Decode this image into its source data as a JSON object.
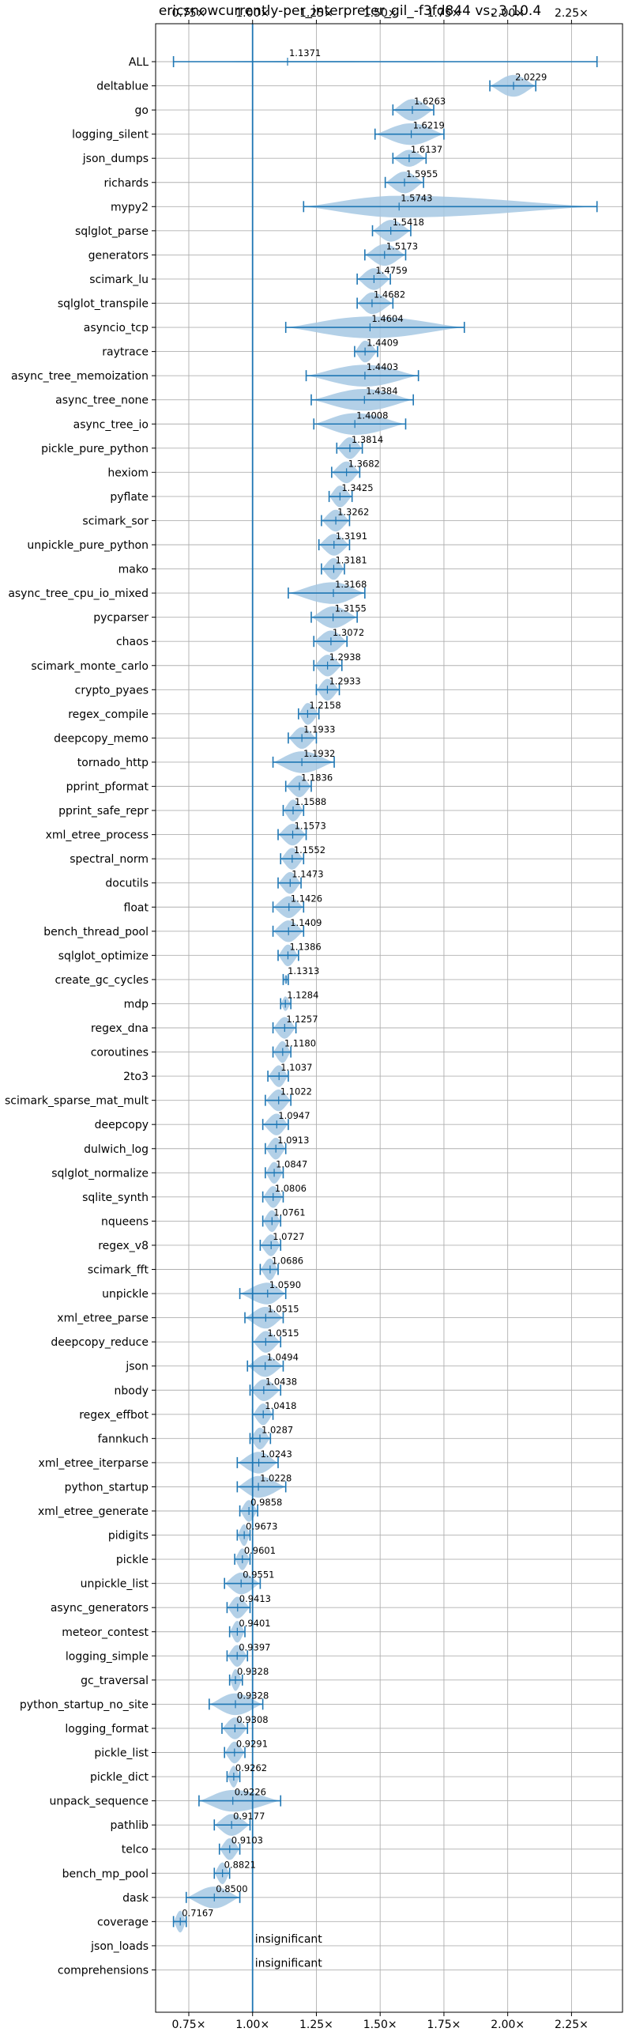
{
  "chart_data": {
    "type": "violin",
    "title": "ericsnowcurrently-per_interpreter_gil_-f3fd844 vs. 3.10.4",
    "xlabel": "",
    "ylabel": "",
    "xlim": [
      0.62,
      2.45
    ],
    "x_ticks": [
      0.75,
      1.0,
      1.25,
      1.5,
      1.75,
      2.0,
      2.25
    ],
    "x_tick_labels": [
      "0.75×",
      "1.00×",
      "1.25×",
      "1.50×",
      "1.75×",
      "2.00×",
      "2.25×"
    ],
    "x_ticks_top": true,
    "grid": true,
    "reference_line": 1.0,
    "colors": {
      "accent": "#1f77b4",
      "violin": "#a6c8e3",
      "grid": "#b0b0b0"
    },
    "insignificant_text": "insignificant",
    "categories": [
      "ALL",
      "deltablue",
      "go",
      "logging_silent",
      "json_dumps",
      "richards",
      "mypy2",
      "sqlglot_parse",
      "generators",
      "scimark_lu",
      "sqlglot_transpile",
      "asyncio_tcp",
      "raytrace",
      "async_tree_memoization",
      "async_tree_none",
      "async_tree_io",
      "pickle_pure_python",
      "hexiom",
      "pyflate",
      "scimark_sor",
      "unpickle_pure_python",
      "mako",
      "async_tree_cpu_io_mixed",
      "pycparser",
      "chaos",
      "scimark_monte_carlo",
      "crypto_pyaes",
      "regex_compile",
      "deepcopy_memo",
      "tornado_http",
      "pprint_pformat",
      "pprint_safe_repr",
      "xml_etree_process",
      "spectral_norm",
      "docutils",
      "float",
      "bench_thread_pool",
      "sqlglot_optimize",
      "create_gc_cycles",
      "mdp",
      "regex_dna",
      "coroutines",
      "2to3",
      "scimark_sparse_mat_mult",
      "deepcopy",
      "dulwich_log",
      "sqlglot_normalize",
      "sqlite_synth",
      "nqueens",
      "regex_v8",
      "scimark_fft",
      "unpickle",
      "xml_etree_parse",
      "deepcopy_reduce",
      "json",
      "nbody",
      "regex_effbot",
      "fannkuch",
      "xml_etree_iterparse",
      "python_startup",
      "xml_etree_generate",
      "pidigits",
      "pickle",
      "unpickle_list",
      "async_generators",
      "meteor_contest",
      "logging_simple",
      "gc_traversal",
      "python_startup_no_site",
      "logging_format",
      "pickle_list",
      "pickle_dict",
      "unpack_sequence",
      "pathlib",
      "telco",
      "bench_mp_pool",
      "dask",
      "coverage",
      "json_loads",
      "comprehensions"
    ],
    "series": [
      {
        "values": [
          {
            "label": "1.1371",
            "mean": 1.1371,
            "min": 0.69,
            "max": 2.35,
            "width": 0.03
          },
          {
            "label": "2.0229",
            "mean": 2.0229,
            "min": 1.93,
            "max": 2.11,
            "width": 0.45
          },
          {
            "label": "1.6263",
            "mean": 1.6263,
            "min": 1.55,
            "max": 1.71,
            "width": 0.45
          },
          {
            "label": "1.6219",
            "mean": 1.6219,
            "min": 1.48,
            "max": 1.75,
            "width": 0.45
          },
          {
            "label": "1.6137",
            "mean": 1.6137,
            "min": 1.55,
            "max": 1.68,
            "width": 0.35
          },
          {
            "label": "1.5955",
            "mean": 1.5955,
            "min": 1.52,
            "max": 1.67,
            "width": 0.45
          },
          {
            "label": "1.5743",
            "mean": 1.5743,
            "min": 1.2,
            "max": 2.35,
            "width": 0.45
          },
          {
            "label": "1.5418",
            "mean": 1.5418,
            "min": 1.47,
            "max": 1.62,
            "width": 0.45
          },
          {
            "label": "1.5173",
            "mean": 1.5173,
            "min": 1.44,
            "max": 1.6,
            "width": 0.45
          },
          {
            "label": "1.4759",
            "mean": 1.4759,
            "min": 1.41,
            "max": 1.54,
            "width": 0.45
          },
          {
            "label": "1.4682",
            "mean": 1.4682,
            "min": 1.41,
            "max": 1.55,
            "width": 0.45
          },
          {
            "label": "1.4604",
            "mean": 1.4604,
            "min": 1.13,
            "max": 1.83,
            "width": 0.45
          },
          {
            "label": "1.4409",
            "mean": 1.4409,
            "min": 1.4,
            "max": 1.49,
            "width": 0.45
          },
          {
            "label": "1.4403",
            "mean": 1.4403,
            "min": 1.21,
            "max": 1.65,
            "width": 0.45
          },
          {
            "label": "1.4384",
            "mean": 1.4384,
            "min": 1.23,
            "max": 1.63,
            "width": 0.45
          },
          {
            "label": "1.4008",
            "mean": 1.4008,
            "min": 1.24,
            "max": 1.6,
            "width": 0.45
          },
          {
            "label": "1.3814",
            "mean": 1.3814,
            "min": 1.33,
            "max": 1.43,
            "width": 0.45
          },
          {
            "label": "1.3682",
            "mean": 1.3682,
            "min": 1.31,
            "max": 1.42,
            "width": 0.45
          },
          {
            "label": "1.3425",
            "mean": 1.3425,
            "min": 1.3,
            "max": 1.39,
            "width": 0.45
          },
          {
            "label": "1.3262",
            "mean": 1.3262,
            "min": 1.27,
            "max": 1.38,
            "width": 0.45
          },
          {
            "label": "1.3191",
            "mean": 1.3191,
            "min": 1.26,
            "max": 1.38,
            "width": 0.45
          },
          {
            "label": "1.3181",
            "mean": 1.3181,
            "min": 1.27,
            "max": 1.36,
            "width": 0.45
          },
          {
            "label": "1.3168",
            "mean": 1.3168,
            "min": 1.14,
            "max": 1.44,
            "width": 0.45
          },
          {
            "label": "1.3155",
            "mean": 1.3155,
            "min": 1.23,
            "max": 1.41,
            "width": 0.45
          },
          {
            "label": "1.3072",
            "mean": 1.3072,
            "min": 1.24,
            "max": 1.37,
            "width": 0.45
          },
          {
            "label": "1.2938",
            "mean": 1.2938,
            "min": 1.24,
            "max": 1.35,
            "width": 0.45
          },
          {
            "label": "1.2933",
            "mean": 1.2933,
            "min": 1.25,
            "max": 1.34,
            "width": 0.45
          },
          {
            "label": "1.2158",
            "mean": 1.2158,
            "min": 1.18,
            "max": 1.26,
            "width": 0.45
          },
          {
            "label": "1.1933",
            "mean": 1.1933,
            "min": 1.14,
            "max": 1.25,
            "width": 0.45
          },
          {
            "label": "1.1932",
            "mean": 1.1932,
            "min": 1.08,
            "max": 1.32,
            "width": 0.45
          },
          {
            "label": "1.1836",
            "mean": 1.1836,
            "min": 1.13,
            "max": 1.23,
            "width": 0.45
          },
          {
            "label": "1.1588",
            "mean": 1.1588,
            "min": 1.12,
            "max": 1.2,
            "width": 0.45
          },
          {
            "label": "1.1573",
            "mean": 1.1573,
            "min": 1.1,
            "max": 1.21,
            "width": 0.45
          },
          {
            "label": "1.1552",
            "mean": 1.1552,
            "min": 1.11,
            "max": 1.2,
            "width": 0.45
          },
          {
            "label": "1.1473",
            "mean": 1.1473,
            "min": 1.1,
            "max": 1.19,
            "width": 0.45
          },
          {
            "label": "1.1426",
            "mean": 1.1426,
            "min": 1.08,
            "max": 1.2,
            "width": 0.45
          },
          {
            "label": "1.1409",
            "mean": 1.1409,
            "min": 1.08,
            "max": 1.2,
            "width": 0.45
          },
          {
            "label": "1.1386",
            "mean": 1.1386,
            "min": 1.1,
            "max": 1.18,
            "width": 0.45
          },
          {
            "label": "1.1313",
            "mean": 1.1313,
            "min": 1.12,
            "max": 1.14,
            "width": 0.2
          },
          {
            "label": "1.1284",
            "mean": 1.1284,
            "min": 1.11,
            "max": 1.15,
            "width": 0.3
          },
          {
            "label": "1.1257",
            "mean": 1.1257,
            "min": 1.08,
            "max": 1.17,
            "width": 0.45
          },
          {
            "label": "1.1180",
            "mean": 1.118,
            "min": 1.08,
            "max": 1.15,
            "width": 0.45
          },
          {
            "label": "1.1037",
            "mean": 1.1037,
            "min": 1.06,
            "max": 1.14,
            "width": 0.45
          },
          {
            "label": "1.1022",
            "mean": 1.1022,
            "min": 1.05,
            "max": 1.15,
            "width": 0.45
          },
          {
            "label": "1.0947",
            "mean": 1.0947,
            "min": 1.04,
            "max": 1.14,
            "width": 0.45
          },
          {
            "label": "1.0913",
            "mean": 1.0913,
            "min": 1.05,
            "max": 1.13,
            "width": 0.45
          },
          {
            "label": "1.0847",
            "mean": 1.0847,
            "min": 1.05,
            "max": 1.12,
            "width": 0.45
          },
          {
            "label": "1.0806",
            "mean": 1.0806,
            "min": 1.04,
            "max": 1.12,
            "width": 0.45
          },
          {
            "label": "1.0761",
            "mean": 1.0761,
            "min": 1.04,
            "max": 1.11,
            "width": 0.45
          },
          {
            "label": "1.0727",
            "mean": 1.0727,
            "min": 1.03,
            "max": 1.11,
            "width": 0.45
          },
          {
            "label": "1.0686",
            "mean": 1.0686,
            "min": 1.03,
            "max": 1.1,
            "width": 0.45
          },
          {
            "label": "1.0590",
            "mean": 1.059,
            "min": 0.95,
            "max": 1.13,
            "width": 0.45
          },
          {
            "label": "1.0515",
            "mean": 1.0515,
            "min": 0.97,
            "max": 1.12,
            "width": 0.45
          },
          {
            "label": "1.0515",
            "mean": 1.0515,
            "min": 1.0,
            "max": 1.11,
            "width": 0.45
          },
          {
            "label": "1.0494",
            "mean": 1.0494,
            "min": 0.98,
            "max": 1.12,
            "width": 0.45
          },
          {
            "label": "1.0438",
            "mean": 1.0438,
            "min": 0.99,
            "max": 1.11,
            "width": 0.45
          },
          {
            "label": "1.0418",
            "mean": 1.0418,
            "min": 1.0,
            "max": 1.08,
            "width": 0.45
          },
          {
            "label": "1.0287",
            "mean": 1.0287,
            "min": 0.99,
            "max": 1.07,
            "width": 0.45
          },
          {
            "label": "1.0243",
            "mean": 1.0243,
            "min": 0.94,
            "max": 1.1,
            "width": 0.45
          },
          {
            "label": "1.0228",
            "mean": 1.0228,
            "min": 0.94,
            "max": 1.13,
            "width": 0.45
          },
          {
            "label": "0.9858",
            "mean": 0.9858,
            "min": 0.95,
            "max": 1.02,
            "width": 0.45
          },
          {
            "label": "0.9673",
            "mean": 0.9673,
            "min": 0.94,
            "max": 0.99,
            "width": 0.45
          },
          {
            "label": "0.9601",
            "mean": 0.9601,
            "min": 0.93,
            "max": 0.99,
            "width": 0.45
          },
          {
            "label": "0.9551",
            "mean": 0.9551,
            "min": 0.89,
            "max": 1.03,
            "width": 0.45
          },
          {
            "label": "0.9413",
            "mean": 0.9413,
            "min": 0.9,
            "max": 0.99,
            "width": 0.45
          },
          {
            "label": "0.9401",
            "mean": 0.9401,
            "min": 0.91,
            "max": 0.97,
            "width": 0.45
          },
          {
            "label": "0.9397",
            "mean": 0.9397,
            "min": 0.9,
            "max": 0.98,
            "width": 0.45
          },
          {
            "label": "0.9328",
            "mean": 0.9328,
            "min": 0.91,
            "max": 0.96,
            "width": 0.45
          },
          {
            "label": "0.9328",
            "mean": 0.9328,
            "min": 0.83,
            "max": 1.04,
            "width": 0.45
          },
          {
            "label": "0.9308",
            "mean": 0.9308,
            "min": 0.88,
            "max": 0.98,
            "width": 0.45
          },
          {
            "label": "0.9291",
            "mean": 0.9291,
            "min": 0.89,
            "max": 0.97,
            "width": 0.45
          },
          {
            "label": "0.9262",
            "mean": 0.9262,
            "min": 0.9,
            "max": 0.95,
            "width": 0.45
          },
          {
            "label": "0.9226",
            "mean": 0.9226,
            "min": 0.79,
            "max": 1.11,
            "width": 0.45
          },
          {
            "label": "0.9177",
            "mean": 0.9177,
            "min": 0.85,
            "max": 0.99,
            "width": 0.45
          },
          {
            "label": "0.9103",
            "mean": 0.9103,
            "min": 0.87,
            "max": 0.95,
            "width": 0.45
          },
          {
            "label": "0.8821",
            "mean": 0.8821,
            "min": 0.85,
            "max": 0.91,
            "width": 0.45
          },
          {
            "label": "0.8500",
            "mean": 0.85,
            "min": 0.74,
            "max": 0.95,
            "width": 0.45
          },
          {
            "label": "0.7167",
            "mean": 0.7167,
            "min": 0.69,
            "max": 0.74,
            "width": 0.45
          },
          {
            "label": "insignificant",
            "mean": null,
            "min": null,
            "max": null,
            "width": 0
          },
          {
            "label": "insignificant",
            "mean": null,
            "min": null,
            "max": null,
            "width": 0
          }
        ]
      }
    ]
  }
}
